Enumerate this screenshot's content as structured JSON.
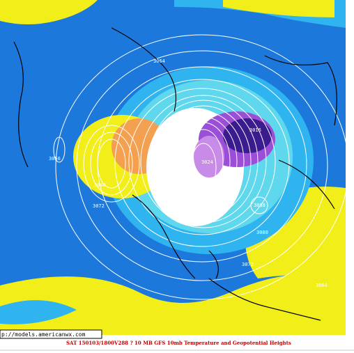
{
  "map": {
    "contour_labels": [
      "3064",
      "3056",
      "3040",
      "3072",
      "3016",
      "3024",
      "3088",
      "3080",
      "3072",
      "3064"
    ],
    "url": "p://models.americanwx.com",
    "caption": "SAT 150103/1800V288  ? 10 MB GFS 10mb Temperature and Geopotential Heights"
  }
}
